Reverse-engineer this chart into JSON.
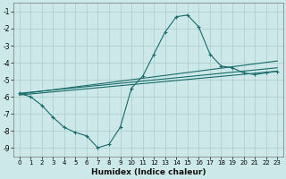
{
  "title": "",
  "xlabel": "Humidex (Indice chaleur)",
  "xlim": [
    -0.5,
    23.5
  ],
  "ylim": [
    -9.5,
    -0.5
  ],
  "yticks": [
    -1,
    -2,
    -3,
    -4,
    -5,
    -6,
    -7,
    -8,
    -9
  ],
  "xticks": [
    0,
    1,
    2,
    3,
    4,
    5,
    6,
    7,
    8,
    9,
    10,
    11,
    12,
    13,
    14,
    15,
    16,
    17,
    18,
    19,
    20,
    21,
    22,
    23
  ],
  "bg_color": "#cce8e8",
  "grid_color": "#aacccc",
  "line_color": "#1a6b6b",
  "curve1_x": [
    0,
    1,
    2,
    3,
    4,
    5,
    6,
    7,
    8,
    9,
    10,
    11,
    12,
    13,
    14,
    15,
    16,
    17,
    18,
    19,
    20,
    21,
    22,
    23
  ],
  "curve1_y": [
    -5.8,
    -6.0,
    -6.5,
    -7.2,
    -7.8,
    -8.1,
    -8.3,
    -9.0,
    -8.8,
    -7.8,
    -5.5,
    -4.8,
    -3.5,
    -2.2,
    -1.3,
    -1.2,
    -1.9,
    -3.5,
    -4.2,
    -4.3,
    -4.6,
    -4.7,
    -4.6,
    -4.5
  ],
  "curve2_x": [
    0,
    23
  ],
  "curve2_y": [
    -5.8,
    -4.3
  ],
  "curve3_x": [
    0,
    23
  ],
  "curve3_y": [
    -5.9,
    -4.5
  ],
  "curve4_x": [
    0,
    23
  ],
  "curve4_y": [
    -5.85,
    -3.9
  ]
}
